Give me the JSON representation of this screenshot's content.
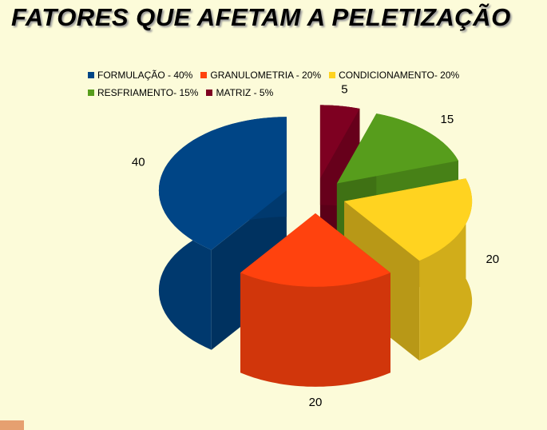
{
  "chart_data": {
    "type": "pie",
    "title": "FATORES QUE AFETAM A PELETIZAÇÃO",
    "categories": [
      "FORMULAÇÃO - 40%",
      "GRANULOMETRIA - 20%",
      "CONDICIONAMENTO- 20%",
      "RESFRIAMENTO- 15%",
      "MATRIZ - 5%"
    ],
    "values": [
      40,
      20,
      20,
      15,
      5
    ],
    "colors": [
      "#004586",
      "#ff420e",
      "#ffd320",
      "#579d1c",
      "#7e0021"
    ]
  }
}
